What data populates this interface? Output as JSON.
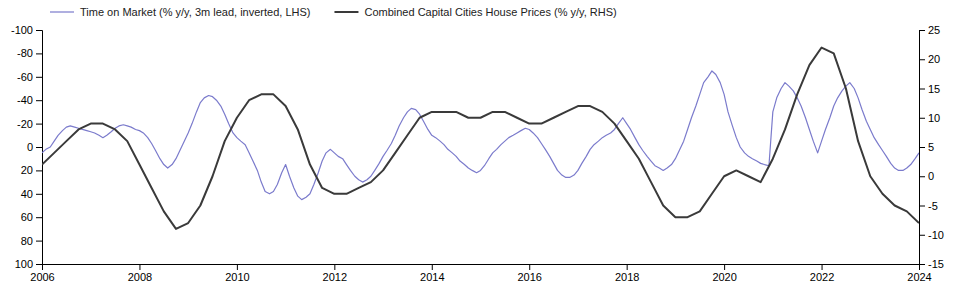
{
  "chart_data": {
    "type": "line",
    "xlim": [
      2006.0,
      2024.0
    ],
    "xticks": [
      2006,
      2008,
      2010,
      2012,
      2014,
      2016,
      2018,
      2020,
      2022,
      2024
    ],
    "ylim": [
      100,
      -100
    ],
    "yticks": [
      -100,
      -80,
      -60,
      -40,
      -20,
      0,
      20,
      40,
      60,
      80,
      100
    ],
    "y2lim": [
      -15,
      25
    ],
    "y2ticks": [
      -15,
      -10,
      -5,
      0,
      5,
      10,
      15,
      20,
      25
    ],
    "grid": false,
    "legend": "upper left",
    "series": [
      {
        "name": "Time on Market (% y/y, 3m lead, inverted, LHS)",
        "color": "#7b7bcc",
        "axis": "y",
        "x": [
          2006.0,
          2006.08,
          2006.17,
          2006.25,
          2006.33,
          2006.42,
          2006.5,
          2006.58,
          2006.67,
          2006.75,
          2006.83,
          2006.92,
          2007.0,
          2007.08,
          2007.17,
          2007.25,
          2007.33,
          2007.42,
          2007.5,
          2007.58,
          2007.67,
          2007.75,
          2007.83,
          2007.92,
          2008.0,
          2008.08,
          2008.17,
          2008.25,
          2008.33,
          2008.42,
          2008.5,
          2008.58,
          2008.67,
          2008.75,
          2008.83,
          2008.92,
          2009.0,
          2009.08,
          2009.17,
          2009.25,
          2009.33,
          2009.42,
          2009.5,
          2009.58,
          2009.67,
          2009.75,
          2009.83,
          2009.92,
          2010.0,
          2010.08,
          2010.17,
          2010.25,
          2010.33,
          2010.42,
          2010.5,
          2010.58,
          2010.67,
          2010.75,
          2010.83,
          2010.92,
          2011.0,
          2011.08,
          2011.17,
          2011.25,
          2011.33,
          2011.42,
          2011.5,
          2011.58,
          2011.67,
          2011.75,
          2011.83,
          2011.92,
          2012.0,
          2012.08,
          2012.17,
          2012.25,
          2012.33,
          2012.42,
          2012.5,
          2012.58,
          2012.67,
          2012.75,
          2012.83,
          2012.92,
          2013.0,
          2013.08,
          2013.17,
          2013.25,
          2013.33,
          2013.42,
          2013.5,
          2013.58,
          2013.67,
          2013.75,
          2013.83,
          2013.92,
          2014.0,
          2014.08,
          2014.17,
          2014.25,
          2014.33,
          2014.42,
          2014.5,
          2014.58,
          2014.67,
          2014.75,
          2014.83,
          2014.92,
          2015.0,
          2015.08,
          2015.17,
          2015.25,
          2015.33,
          2015.42,
          2015.5,
          2015.58,
          2015.67,
          2015.75,
          2015.83,
          2015.92,
          2016.0,
          2016.08,
          2016.17,
          2016.25,
          2016.33,
          2016.42,
          2016.5,
          2016.58,
          2016.67,
          2016.75,
          2016.83,
          2016.92,
          2017.0,
          2017.08,
          2017.17,
          2017.25,
          2017.33,
          2017.42,
          2017.5,
          2017.58,
          2017.67,
          2017.75,
          2017.83,
          2017.92,
          2018.0,
          2018.08,
          2018.17,
          2018.25,
          2018.33,
          2018.42,
          2018.5,
          2018.58,
          2018.67,
          2018.75,
          2018.83,
          2018.92,
          2019.0,
          2019.08,
          2019.17,
          2019.25,
          2019.33,
          2019.42,
          2019.5,
          2019.58,
          2019.67,
          2019.75,
          2019.83,
          2019.92,
          2020.0,
          2020.08,
          2020.17,
          2020.25,
          2020.33,
          2020.42,
          2020.5,
          2020.58,
          2020.67,
          2020.75,
          2020.83,
          2020.92,
          2021.0,
          2021.08,
          2021.17,
          2021.25,
          2021.33,
          2021.42,
          2021.5,
          2021.58,
          2021.67,
          2021.75,
          2021.83,
          2021.92,
          2022.0,
          2022.08,
          2022.17,
          2022.25,
          2022.33,
          2022.42,
          2022.5,
          2022.58,
          2022.67,
          2022.75,
          2022.83,
          2022.92,
          2023.0,
          2023.08,
          2023.17,
          2023.25,
          2023.33,
          2023.42,
          2023.5,
          2023.58,
          2023.67,
          2023.75,
          2023.83,
          2023.92,
          2024.0
        ],
        "values": [
          5,
          2,
          0,
          -5,
          -10,
          -14,
          -17,
          -18,
          -17,
          -16,
          -15,
          -14,
          -13,
          -12,
          -10,
          -8,
          -10,
          -13,
          -16,
          -18,
          -19,
          -18,
          -17,
          -15,
          -14,
          -12,
          -8,
          -3,
          3,
          10,
          15,
          18,
          15,
          10,
          3,
          -5,
          -12,
          -20,
          -30,
          -38,
          -42,
          -44,
          -43,
          -40,
          -35,
          -28,
          -20,
          -12,
          -8,
          -5,
          -2,
          5,
          12,
          20,
          30,
          38,
          40,
          38,
          32,
          22,
          15,
          25,
          35,
          42,
          45,
          43,
          40,
          32,
          22,
          12,
          5,
          2,
          5,
          8,
          10,
          15,
          20,
          25,
          28,
          30,
          28,
          25,
          20,
          14,
          8,
          3,
          -3,
          -10,
          -18,
          -25,
          -30,
          -33,
          -32,
          -28,
          -22,
          -15,
          -10,
          -8,
          -5,
          -2,
          2,
          5,
          8,
          12,
          15,
          18,
          20,
          22,
          20,
          16,
          10,
          5,
          2,
          -2,
          -5,
          -8,
          -10,
          -12,
          -14,
          -16,
          -15,
          -12,
          -8,
          -3,
          2,
          8,
          14,
          20,
          24,
          26,
          26,
          24,
          20,
          14,
          8,
          2,
          -2,
          -5,
          -8,
          -10,
          -12,
          -15,
          -20,
          -25,
          -20,
          -15,
          -8,
          -2,
          3,
          8,
          12,
          16,
          18,
          20,
          18,
          15,
          10,
          3,
          -5,
          -15,
          -25,
          -35,
          -45,
          -55,
          -60,
          -65,
          -62,
          -55,
          -45,
          -30,
          -18,
          -8,
          0,
          5,
          8,
          10,
          12,
          14,
          15,
          16,
          -30,
          -42,
          -50,
          -55,
          -52,
          -48,
          -42,
          -35,
          -25,
          -15,
          -5,
          5,
          -5,
          -15,
          -25,
          -35,
          -42,
          -48,
          -52,
          -55,
          -50,
          -42,
          -32,
          -22,
          -15,
          -8,
          -2,
          3,
          8,
          14,
          18,
          20,
          20,
          18,
          15,
          10,
          5
        ]
      },
      {
        "name": "Combined Capital Cities House Prices (% y/y, RHS)",
        "color": "#3a3a3a",
        "axis": "y2",
        "x": [
          2006.0,
          2006.25,
          2006.5,
          2006.75,
          2007.0,
          2007.25,
          2007.5,
          2007.75,
          2008.0,
          2008.25,
          2008.5,
          2008.75,
          2009.0,
          2009.25,
          2009.5,
          2009.75,
          2010.0,
          2010.25,
          2010.5,
          2010.75,
          2011.0,
          2011.25,
          2011.5,
          2011.75,
          2012.0,
          2012.25,
          2012.5,
          2012.75,
          2013.0,
          2013.25,
          2013.5,
          2013.75,
          2014.0,
          2014.25,
          2014.5,
          2014.75,
          2015.0,
          2015.25,
          2015.5,
          2015.75,
          2016.0,
          2016.25,
          2016.5,
          2016.75,
          2017.0,
          2017.25,
          2017.5,
          2017.75,
          2018.0,
          2018.25,
          2018.5,
          2018.75,
          2019.0,
          2019.25,
          2019.5,
          2019.75,
          2020.0,
          2020.25,
          2020.5,
          2020.75,
          2021.0,
          2021.25,
          2021.5,
          2021.75,
          2022.0,
          2022.25,
          2022.5,
          2022.75,
          2023.0,
          2023.25,
          2023.5,
          2023.75,
          2024.0
        ],
        "values": [
          2,
          4,
          6,
          8,
          9,
          9,
          8,
          6,
          2,
          -2,
          -6,
          -9,
          -8,
          -5,
          0,
          6,
          10,
          13,
          14,
          14,
          12,
          8,
          2,
          -2,
          -3,
          -3,
          -2,
          -1,
          1,
          4,
          7,
          10,
          11,
          11,
          11,
          10,
          10,
          11,
          11,
          10,
          9,
          9,
          10,
          11,
          12,
          12,
          11,
          9,
          6,
          3,
          -1,
          -5,
          -7,
          -7,
          -6,
          -3,
          0,
          1,
          0,
          -1,
          3,
          8,
          14,
          19,
          22,
          21,
          15,
          6,
          0,
          -3,
          -5,
          -6,
          -8
        ]
      }
    ]
  }
}
